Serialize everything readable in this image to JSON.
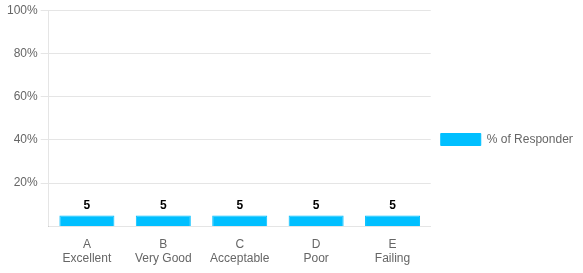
{
  "chart_data": {
    "type": "bar",
    "categories": [
      "A\nExcellent",
      "B\nVery Good",
      "C\nAcceptable",
      "D\nPoor",
      "E\nFailing"
    ],
    "series": [
      {
        "name": "% of Respondents",
        "color": "#00BFFF",
        "values": [
          5,
          5,
          5,
          5,
          5
        ]
      }
    ],
    "ylim": [
      0,
      100
    ],
    "yticks": [
      {
        "value": 20,
        "label": "20%"
      },
      {
        "value": 40,
        "label": "40%"
      },
      {
        "value": 60,
        "label": "60%"
      },
      {
        "value": 80,
        "label": "80%"
      },
      {
        "value": 100,
        "label": "100%"
      }
    ],
    "grid": true,
    "legend": "right",
    "data_labels": true
  }
}
